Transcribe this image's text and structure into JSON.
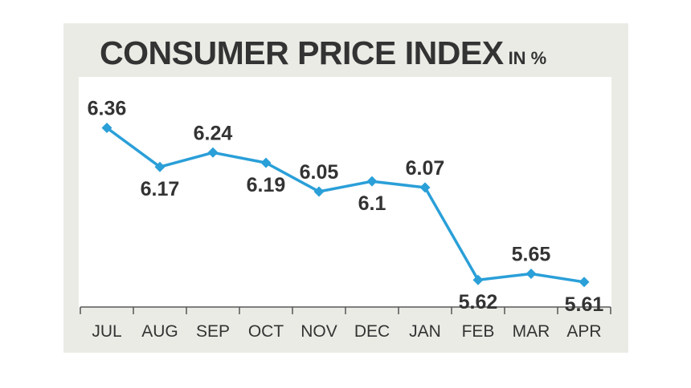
{
  "chart_data": {
    "type": "line",
    "title": "CONSUMER PRICE INDEX",
    "subtitle": "IN %",
    "categories": [
      "JUL",
      "AUG",
      "SEP",
      "OCT",
      "NOV",
      "DEC",
      "JAN",
      "FEB",
      "MAR",
      "APR"
    ],
    "series": [
      {
        "values": [
          6.36,
          6.17,
          6.24,
          6.19,
          6.05,
          6.1,
          6.07,
          5.62,
          5.65,
          5.61
        ],
        "data_labels": [
          "6.36",
          "6.17",
          "6.24",
          "6.19",
          "6.05",
          "6.1",
          "6.07",
          "5.62",
          "5.65",
          "5.61"
        ],
        "color": "#2a9fd8"
      }
    ],
    "label_placement": [
      "above",
      "below",
      "above",
      "below",
      "above",
      "below",
      "above",
      "below",
      "above",
      "below"
    ],
    "ylim": [
      5.5,
      6.6
    ],
    "grid": false,
    "legend": "none"
  },
  "colors": {
    "line": "#2a9fd8",
    "text": "#333333",
    "card_background": "#ebebe6",
    "plot_background": "#ffffff",
    "axis": "#555555"
  }
}
